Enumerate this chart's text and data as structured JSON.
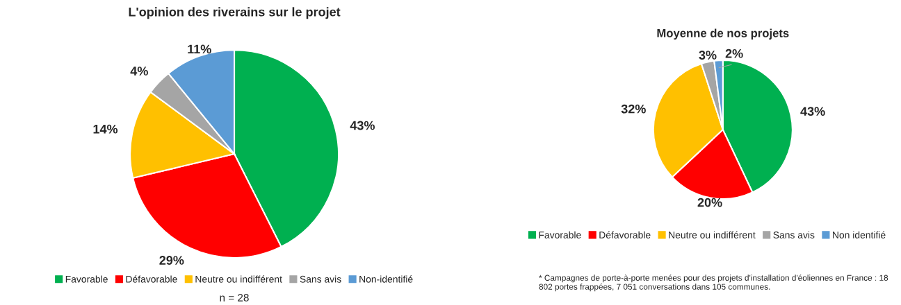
{
  "chart_data": [
    {
      "type": "pie",
      "title": "L'opinion des riverains sur le projet",
      "categories": [
        "Favorable",
        "Défavorable",
        "Neutre ou indifférent",
        "Sans avis",
        "Non-identifié"
      ],
      "values": [
        43,
        29,
        14,
        4,
        11
      ],
      "colors": [
        "#00b050",
        "#ff0000",
        "#ffc000",
        "#a5a5a5",
        "#5b9bd5"
      ],
      "value_labels": [
        "43%",
        "29%",
        "14%",
        "4%",
        "11%"
      ],
      "legend": "bottom",
      "annotations": [
        "n = 28"
      ]
    },
    {
      "type": "pie",
      "title": "Moyenne de nos projets",
      "categories": [
        "Favorable",
        "Défavorable",
        "Neutre ou indifférent",
        "Sans avis",
        "Non identifié"
      ],
      "values": [
        43,
        20,
        32,
        3,
        2
      ],
      "colors": [
        "#00b050",
        "#ff0000",
        "#ffc000",
        "#a5a5a5",
        "#5b9bd5"
      ],
      "value_labels": [
        "43%",
        "20%",
        "32%",
        "3%",
        "2%"
      ],
      "legend": "bottom",
      "annotations": [
        "* Campagnes de porte-à-porte menées pour des projets d'installation d'éoliennes en France : 18 802 portes frappées, 7 051 conversations dans 105 communes."
      ]
    }
  ]
}
